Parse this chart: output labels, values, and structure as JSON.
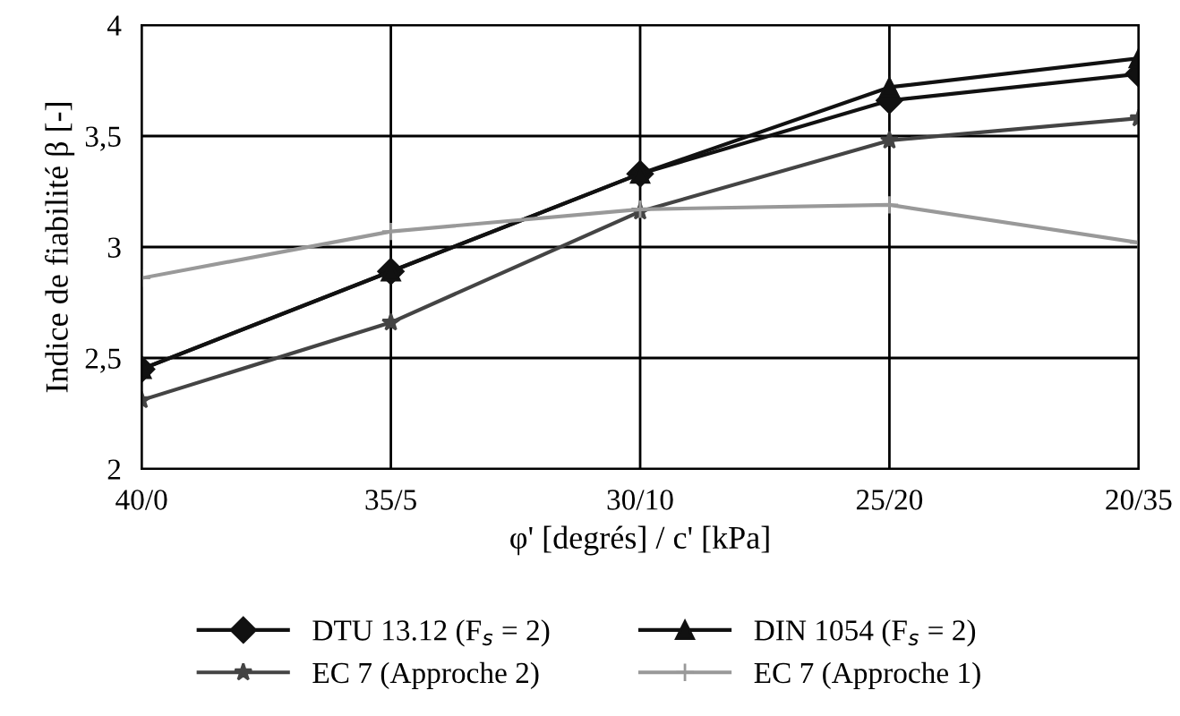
{
  "chart_data": {
    "type": "line",
    "xlabel": "φ' [degrés] / c' [kPa]",
    "ylabel": "Indice de fiabilité β [-]",
    "categories": [
      "40/0",
      "35/5",
      "30/10",
      "25/20",
      "20/35"
    ],
    "series": [
      {
        "name": "DTU 13.12 (F$_{s}$ = 2)",
        "color": "#111111",
        "marker": "diamond",
        "values": [
          2.45,
          2.89,
          3.33,
          3.66,
          3.78
        ]
      },
      {
        "name": "DIN 1054 (F$_{s}$ = 2)",
        "color": "#111111",
        "marker": "triangle",
        "values": [
          2.45,
          2.89,
          3.33,
          3.72,
          3.85
        ]
      },
      {
        "name": "EC 7 (Approche 2)",
        "color": "#444444",
        "marker": "star",
        "values": [
          2.31,
          2.66,
          3.16,
          3.48,
          3.58
        ]
      },
      {
        "name": "EC 7 (Approche 1)",
        "color": "#999999",
        "marker": "cross",
        "values": [
          2.86,
          3.07,
          3.17,
          3.19,
          3.02
        ]
      }
    ],
    "ylim": [
      2,
      4
    ],
    "yticks": [
      {
        "value": 2,
        "label": "2"
      },
      {
        "value": 2.5,
        "label": "2,5"
      },
      {
        "value": 3,
        "label": "3"
      },
      {
        "value": 3.5,
        "label": "3,5"
      },
      {
        "value": 4,
        "label": "4"
      }
    ],
    "grid": true,
    "legend": "bottom",
    "line_style": "solid"
  }
}
